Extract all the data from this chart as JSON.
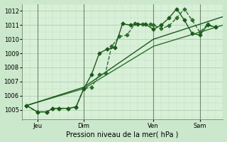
{
  "xlabel": "Pression niveau de la mer( hPa )",
  "background_color": "#cce8cc",
  "plot_bg_color": "#d8f0d8",
  "grid_major_color": "#a8c8a8",
  "grid_minor_color": "#c0dcc0",
  "xlim": [
    0,
    13.0
  ],
  "ylim": [
    1004.3,
    1012.5
  ],
  "yticks": [
    1005,
    1006,
    1007,
    1008,
    1009,
    1010,
    1011,
    1012
  ],
  "xtick_positions": [
    1.0,
    4.0,
    8.5,
    11.5
  ],
  "xtick_labels": [
    "Jeu",
    "Dim",
    "Ven",
    "Sam"
  ],
  "vlines": [
    1.0,
    4.0,
    8.5,
    11.5
  ],
  "series": [
    {
      "x": [
        0.3,
        1.0,
        1.6,
        2.0,
        2.4,
        3.0,
        3.5,
        4.0,
        4.5,
        5.0,
        5.4,
        5.8,
        6.3,
        6.8,
        7.3,
        7.8,
        8.3,
        8.5,
        9.0,
        9.5,
        10.0,
        10.5,
        11.0,
        11.5,
        12.0,
        12.5
      ],
      "y": [
        1005.3,
        1004.85,
        1004.85,
        1005.1,
        1005.1,
        1005.1,
        1005.2,
        1006.5,
        1006.6,
        1007.5,
        1007.6,
        1009.5,
        1010.2,
        1010.3,
        1011.1,
        1011.05,
        1011.05,
        1011.0,
        1010.75,
        1010.95,
        1011.5,
        1012.15,
        1011.35,
        1010.5,
        1011.05,
        1010.85
      ],
      "color": "#2d6e2d",
      "marker": "D",
      "markersize": 2.5,
      "linewidth": 1.0,
      "linestyle": "--"
    },
    {
      "x": [
        0.3,
        1.0,
        1.6,
        2.0,
        2.4,
        3.0,
        3.5,
        4.0,
        4.5,
        5.0,
        5.5,
        6.0,
        6.5,
        7.0,
        7.5,
        8.0,
        8.5,
        9.0,
        9.5,
        10.0,
        10.5,
        11.0,
        11.5,
        12.0,
        12.5
      ],
      "y": [
        1005.3,
        1004.85,
        1004.85,
        1005.1,
        1005.1,
        1005.1,
        1005.2,
        1006.5,
        1007.5,
        1009.0,
        1009.3,
        1009.4,
        1011.1,
        1011.0,
        1011.05,
        1011.05,
        1010.7,
        1011.0,
        1011.5,
        1012.15,
        1011.35,
        1010.4,
        1010.3,
        1011.0,
        1010.85
      ],
      "color": "#1a5a1a",
      "marker": "D",
      "markersize": 2.5,
      "linewidth": 1.0,
      "linestyle": "-"
    },
    {
      "x": [
        0.3,
        4.0,
        8.5,
        13.0
      ],
      "y": [
        1005.3,
        1006.5,
        1009.5,
        1011.0
      ],
      "color": "#2d6e2d",
      "marker": null,
      "markersize": 0,
      "linewidth": 1.0,
      "linestyle": "-"
    },
    {
      "x": [
        0.3,
        4.0,
        8.5,
        13.0
      ],
      "y": [
        1005.3,
        1006.6,
        1010.0,
        1011.6
      ],
      "color": "#1a5a1a",
      "marker": null,
      "markersize": 0,
      "linewidth": 1.0,
      "linestyle": "-"
    }
  ]
}
